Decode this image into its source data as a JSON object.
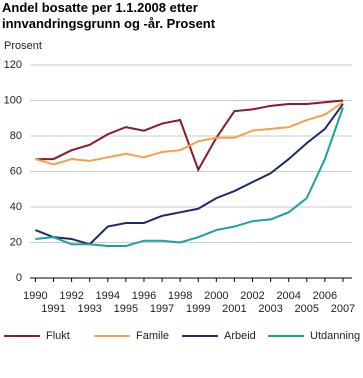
{
  "chart_data": {
    "type": "line",
    "title": "Andel bosatte per 1.1.2008 etter innvandringsgrunn og -år.  Prosent",
    "y_label": "Prosent",
    "x": [
      1990,
      1991,
      1992,
      1993,
      1994,
      1995,
      1996,
      1997,
      1998,
      1999,
      2000,
      2001,
      2002,
      2003,
      2004,
      2005,
      2006,
      2007
    ],
    "xlim": [
      1989.7,
      2007.5
    ],
    "ylim": [
      0,
      120
    ],
    "yticks": [
      0,
      20,
      40,
      60,
      80,
      100,
      120
    ],
    "grid": true,
    "legend": "bottom",
    "series": [
      {
        "name": "Flukt",
        "color": "#8b1a2b",
        "values": [
          67,
          67,
          72,
          75,
          81,
          85,
          83,
          87,
          89,
          61,
          79,
          94,
          95,
          97,
          98,
          98,
          99,
          100
        ]
      },
      {
        "name": "Famile",
        "color": "#f5a04a",
        "values": [
          67,
          64,
          67,
          66,
          68,
          70,
          68,
          71,
          72,
          77,
          79,
          79,
          83,
          84,
          85,
          89,
          92,
          99
        ]
      },
      {
        "name": "Arbeid",
        "color": "#1f2a6b",
        "values": [
          27,
          23,
          22,
          19,
          29,
          31,
          31,
          35,
          37,
          39,
          45,
          49,
          54,
          59,
          67,
          76,
          84,
          98
        ]
      },
      {
        "name": "Utdanning",
        "color": "#1aa39a",
        "values": [
          22,
          23,
          19,
          19,
          18,
          18,
          21,
          21,
          20,
          23,
          27,
          29,
          32,
          33,
          37,
          45,
          67,
          96
        ]
      }
    ]
  }
}
